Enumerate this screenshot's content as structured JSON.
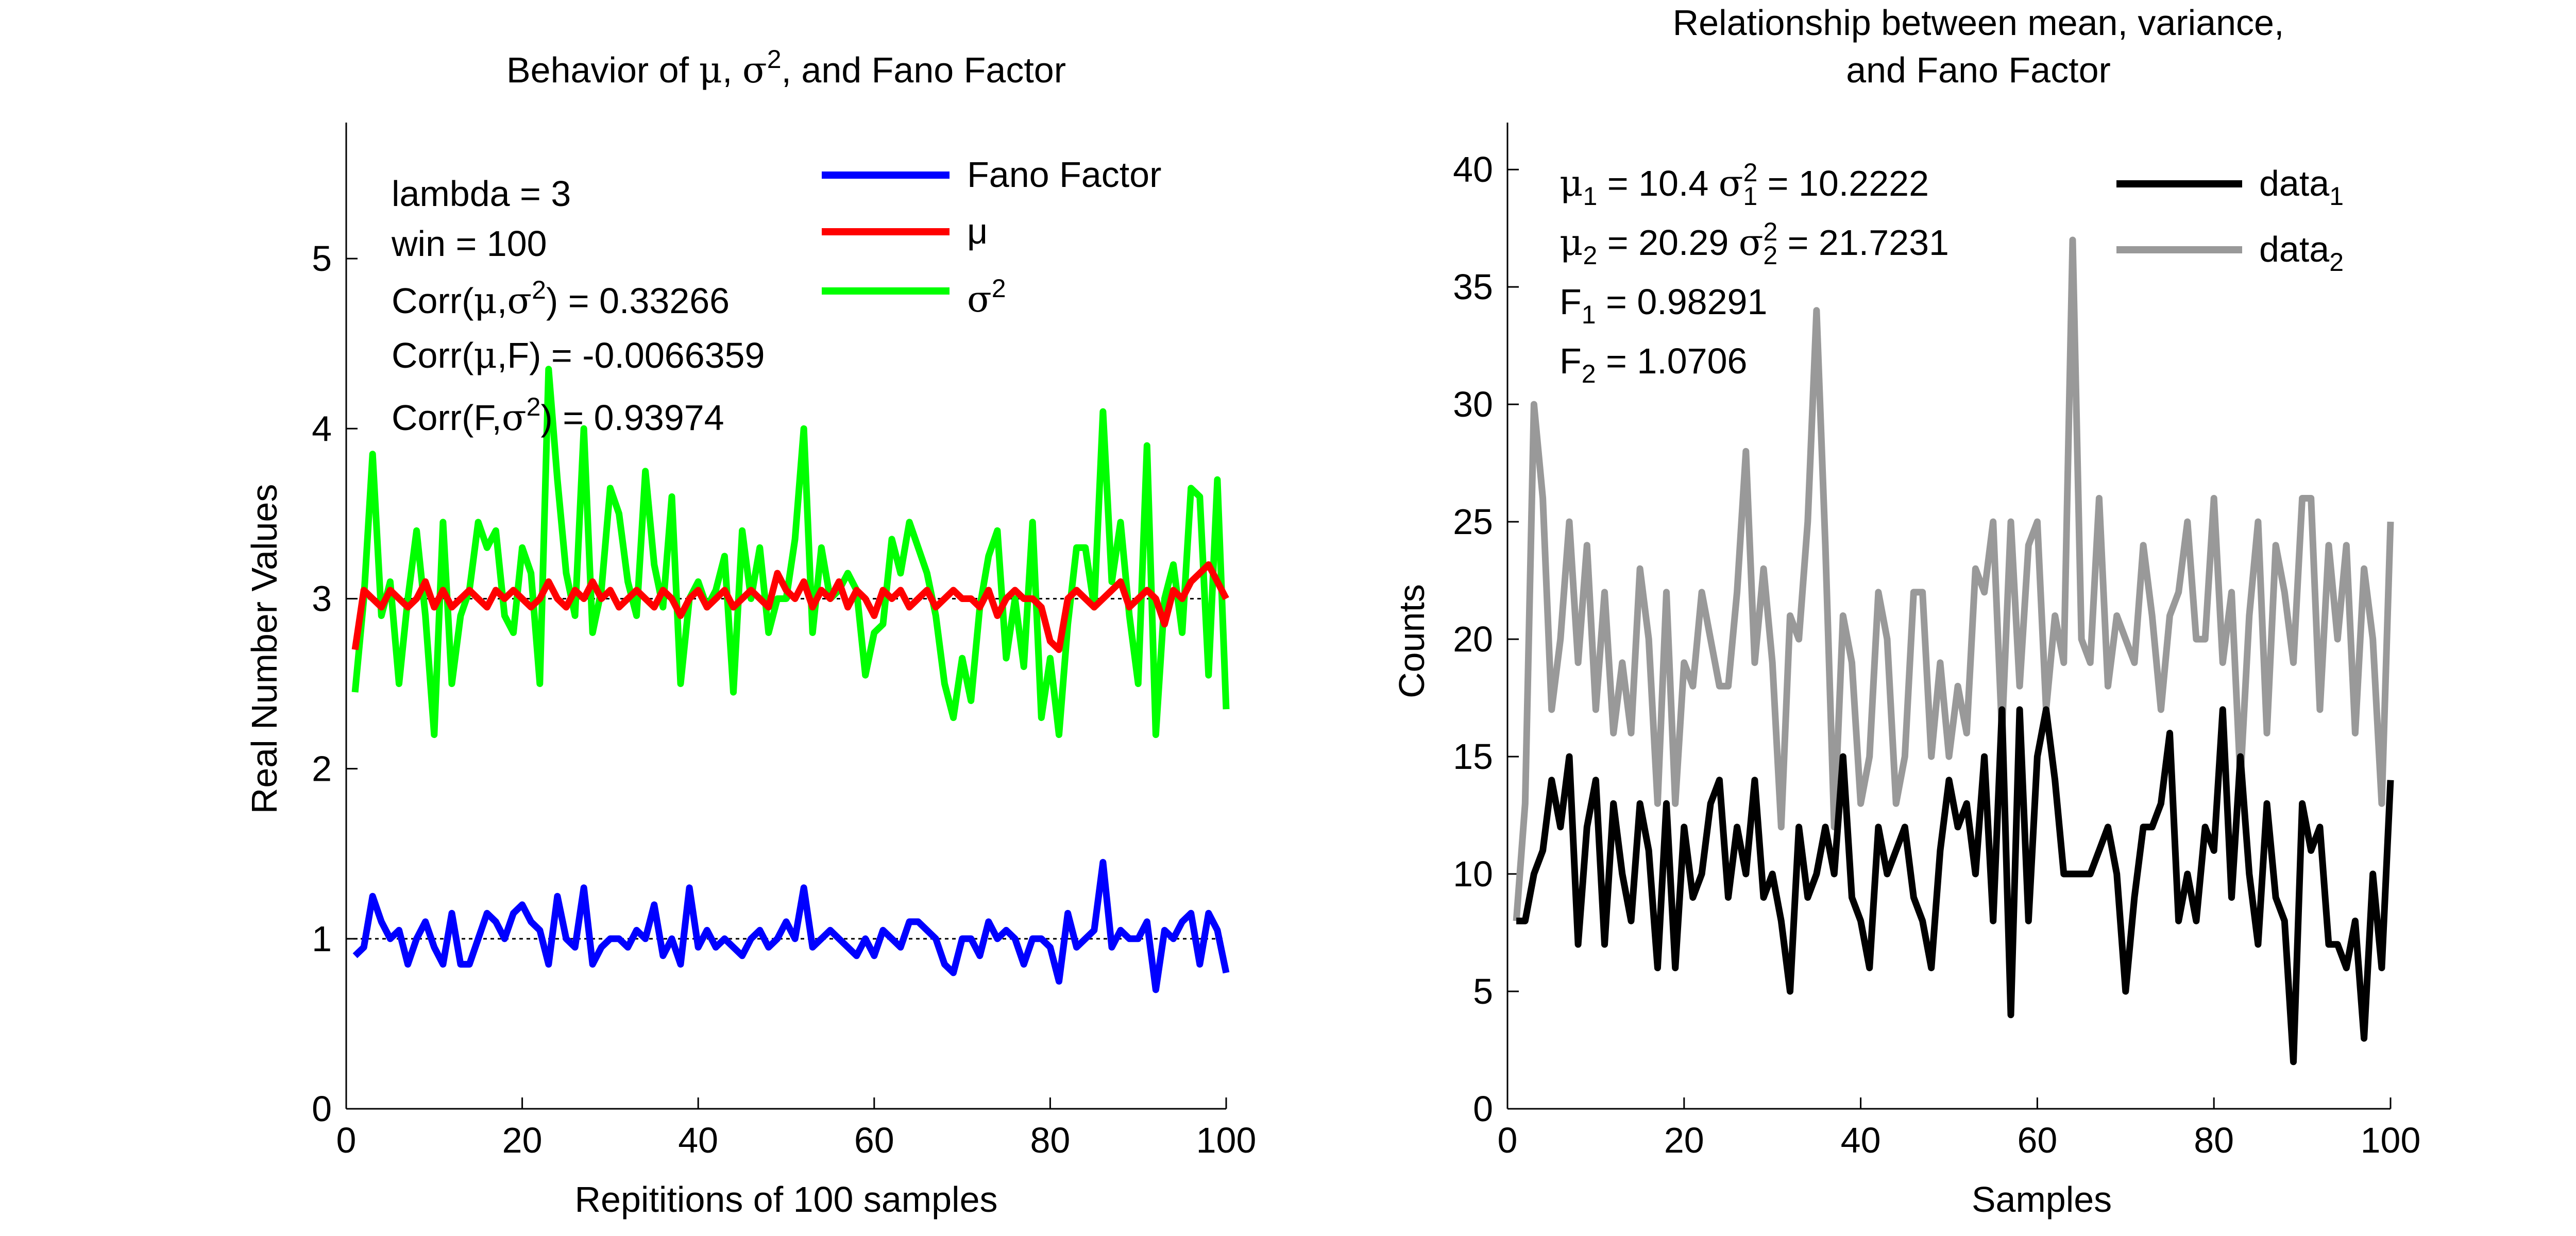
{
  "chart_data": [
    {
      "type": "line",
      "title": "Behavior of μ, σ², and Fano Factor",
      "title_parts": {
        "a": "Behavior of ",
        "mu": "μ",
        "sep": ", ",
        "sigma": "σ",
        "sq": "2",
        "rest": ", and Fano Factor"
      },
      "xlabel": "Repititions of 100 samples",
      "ylabel": "Real Number Values",
      "xlim": [
        0,
        100
      ],
      "ylim": [
        0,
        5.8
      ],
      "xticks": [
        0,
        20,
        40,
        60,
        80,
        100
      ],
      "yticks": [
        0,
        1,
        2,
        3,
        4,
        5
      ],
      "grid": false,
      "legend_position": "top-right",
      "annotations": {
        "lambda": "lambda = 3",
        "win": "win = 100",
        "corr1": {
          "a": "Corr(",
          "b": "μ",
          "c": ",",
          "d": "σ",
          "sq": "2",
          "e": ") = 0.33266"
        },
        "corr2": {
          "a": "Corr(",
          "b": "μ",
          "c": ",F) = -0.0066359"
        },
        "corr3": {
          "a": "Corr(F,",
          "d": "σ",
          "sq": "2",
          "e": ") = 0.93974"
        }
      },
      "reference_lines": [
        {
          "y": 1,
          "style": "dotted",
          "color": "#000000"
        },
        {
          "y": 3,
          "style": "dotted",
          "color": "#000000"
        }
      ],
      "x": [
        1,
        2,
        3,
        4,
        5,
        6,
        7,
        8,
        9,
        10,
        11,
        12,
        13,
        14,
        15,
        16,
        17,
        18,
        19,
        20,
        21,
        22,
        23,
        24,
        25,
        26,
        27,
        28,
        29,
        30,
        31,
        32,
        33,
        34,
        35,
        36,
        37,
        38,
        39,
        40,
        41,
        42,
        43,
        44,
        45,
        46,
        47,
        48,
        49,
        50,
        51,
        52,
        53,
        54,
        55,
        56,
        57,
        58,
        59,
        60,
        61,
        62,
        63,
        64,
        65,
        66,
        67,
        68,
        69,
        70,
        71,
        72,
        73,
        74,
        75,
        76,
        77,
        78,
        79,
        80,
        81,
        82,
        83,
        84,
        85,
        86,
        87,
        88,
        89,
        90,
        91,
        92,
        93,
        94,
        95,
        96,
        97,
        98,
        99,
        100
      ],
      "series": [
        {
          "name": "Fano Factor",
          "legend": "Fano Factor",
          "color": "#0000ff",
          "values": [
            0.9,
            0.95,
            1.25,
            1.1,
            1.0,
            1.05,
            0.85,
            1.0,
            1.1,
            0.95,
            0.85,
            1.15,
            0.85,
            0.85,
            1.0,
            1.15,
            1.1,
            1.0,
            1.15,
            1.2,
            1.1,
            1.05,
            0.85,
            1.25,
            1.0,
            0.95,
            1.3,
            0.85,
            0.95,
            1.0,
            1.0,
            0.95,
            1.05,
            1.0,
            1.2,
            0.9,
            1.0,
            0.85,
            1.3,
            0.95,
            1.05,
            0.95,
            1.0,
            0.95,
            0.9,
            1.0,
            1.05,
            0.95,
            1.0,
            1.1,
            1.0,
            1.3,
            0.95,
            1.0,
            1.05,
            1.0,
            0.95,
            0.9,
            1.0,
            0.9,
            1.05,
            1.0,
            0.95,
            1.1,
            1.1,
            1.05,
            1.0,
            0.85,
            0.8,
            1.0,
            1.0,
            0.9,
            1.1,
            1.0,
            1.05,
            1.0,
            0.85,
            1.0,
            1.0,
            0.95,
            0.75,
            1.15,
            0.95,
            1.0,
            1.05,
            1.45,
            0.95,
            1.05,
            1.0,
            1.0,
            1.1,
            0.7,
            1.05,
            1.0,
            1.1,
            1.15,
            0.85,
            1.15,
            1.05,
            0.8
          ]
        },
        {
          "name": "μ",
          "legend": "μ",
          "color": "#ff0000",
          "values": [
            2.7,
            3.05,
            3.0,
            2.95,
            3.05,
            3.0,
            2.95,
            3.0,
            3.1,
            2.95,
            3.05,
            2.95,
            3.0,
            3.05,
            3.0,
            2.95,
            3.05,
            3.0,
            3.05,
            3.0,
            2.95,
            3.0,
            3.1,
            3.0,
            2.95,
            3.05,
            3.0,
            3.1,
            3.0,
            3.05,
            2.95,
            3.0,
            3.05,
            3.0,
            2.95,
            3.05,
            3.0,
            2.9,
            3.0,
            3.05,
            2.95,
            3.0,
            3.05,
            2.95,
            3.0,
            3.05,
            3.0,
            2.95,
            3.15,
            3.05,
            3.0,
            3.1,
            2.95,
            3.05,
            3.0,
            3.1,
            2.95,
            3.05,
            3.0,
            2.9,
            3.05,
            3.0,
            3.05,
            2.95,
            3.0,
            3.05,
            2.95,
            3.0,
            3.05,
            3.0,
            3.0,
            2.95,
            3.05,
            2.9,
            3.0,
            3.05,
            3.0,
            3.0,
            2.95,
            2.75,
            2.7,
            3.0,
            3.05,
            3.0,
            2.95,
            3.0,
            3.05,
            3.1,
            2.95,
            3.0,
            3.05,
            3.0,
            2.85,
            3.05,
            3.0,
            3.1,
            3.15,
            3.2,
            3.1,
            3.0
          ]
        },
        {
          "name": "σ²",
          "legend": {
            "a": "σ",
            "sq": "2"
          },
          "color": "#00ff00",
          "values": [
            2.45,
            3.0,
            3.85,
            2.9,
            3.1,
            2.5,
            3.0,
            3.4,
            2.9,
            2.2,
            3.45,
            2.5,
            2.9,
            3.05,
            3.45,
            3.3,
            3.4,
            2.9,
            2.8,
            3.3,
            3.15,
            2.5,
            4.35,
            3.7,
            3.15,
            2.9,
            4.0,
            2.8,
            3.05,
            3.65,
            3.5,
            3.1,
            2.9,
            3.75,
            3.2,
            2.95,
            3.6,
            2.5,
            3.0,
            3.1,
            2.95,
            3.05,
            3.25,
            2.45,
            3.4,
            3.0,
            3.3,
            2.8,
            3.0,
            3.0,
            3.35,
            4.0,
            2.8,
            3.3,
            3.0,
            3.05,
            3.15,
            3.05,
            2.55,
            2.8,
            2.85,
            3.35,
            3.15,
            3.45,
            3.3,
            3.15,
            2.9,
            2.5,
            2.3,
            2.65,
            2.4,
            2.95,
            3.25,
            3.4,
            2.65,
            3.0,
            2.6,
            3.45,
            2.3,
            2.65,
            2.2,
            2.85,
            3.3,
            3.3,
            2.95,
            4.1,
            3.1,
            3.45,
            2.9,
            2.5,
            3.9,
            2.2,
            3.0,
            3.2,
            2.8,
            3.65,
            3.6,
            2.55,
            3.7,
            2.35
          ]
        }
      ]
    },
    {
      "type": "line",
      "title": [
        "Relationship between mean, variance,",
        "and Fano Factor"
      ],
      "xlabel": "Samples",
      "ylabel": "Counts",
      "xlim": [
        0,
        100
      ],
      "ylim": [
        0,
        42
      ],
      "xticks": [
        0,
        20,
        40,
        60,
        80,
        100
      ],
      "yticks": [
        0,
        5,
        10,
        15,
        20,
        25,
        30,
        35,
        40
      ],
      "grid": false,
      "legend_position": "top-right",
      "annotations": {
        "row1": {
          "mu": "μ",
          "sub1": "1",
          "a": " = 10.4  ",
          "sig": "σ",
          "sq": "2",
          "sub2": "1",
          "b": " = 10.2222"
        },
        "row2": {
          "mu": "μ",
          "sub1": "2",
          "a": " = 20.29  ",
          "sig": "σ",
          "sq": "2",
          "sub2": "2",
          "b": " = 21.7231"
        },
        "row3": {
          "f": "F",
          "sub": "1",
          "a": " = 0.98291"
        },
        "row4": {
          "f": "F",
          "sub": "2",
          "a": " = 1.0706"
        }
      },
      "x": [
        1,
        2,
        3,
        4,
        5,
        6,
        7,
        8,
        9,
        10,
        11,
        12,
        13,
        14,
        15,
        16,
        17,
        18,
        19,
        20,
        21,
        22,
        23,
        24,
        25,
        26,
        27,
        28,
        29,
        30,
        31,
        32,
        33,
        34,
        35,
        36,
        37,
        38,
        39,
        40,
        41,
        42,
        43,
        44,
        45,
        46,
        47,
        48,
        49,
        50,
        51,
        52,
        53,
        54,
        55,
        56,
        57,
        58,
        59,
        60,
        61,
        62,
        63,
        64,
        65,
        66,
        67,
        68,
        69,
        70,
        71,
        72,
        73,
        74,
        75,
        76,
        77,
        78,
        79,
        80,
        81,
        82,
        83,
        84,
        85,
        86,
        87,
        88,
        89,
        90,
        91,
        92,
        93,
        94,
        95,
        96,
        97,
        98,
        99,
        100
      ],
      "series": [
        {
          "name": "data_1",
          "legend": {
            "base": "data",
            "sub": "1"
          },
          "color": "#000000",
          "values": [
            8,
            8,
            10,
            11,
            14,
            12,
            15,
            7,
            12,
            14,
            7,
            13,
            10,
            8,
            13,
            11,
            6,
            13,
            6,
            12,
            9,
            10,
            13,
            14,
            9,
            12,
            10,
            14,
            9,
            10,
            8,
            5,
            12,
            9,
            10,
            12,
            10,
            15,
            9,
            8,
            6,
            12,
            10,
            11,
            12,
            9,
            8,
            6,
            11,
            14,
            12,
            13,
            10,
            15,
            8,
            17,
            4,
            17,
            8,
            15,
            17,
            14,
            10,
            10,
            10,
            10,
            11,
            12,
            10,
            5,
            9,
            12,
            12,
            13,
            16,
            8,
            10,
            8,
            12,
            11,
            17,
            9,
            15,
            10,
            7,
            13,
            9,
            8,
            2,
            13,
            11,
            12,
            7,
            7,
            6,
            8,
            3,
            10,
            6,
            14
          ]
        },
        {
          "name": "data_2",
          "legend": {
            "base": "data",
            "sub": "2"
          },
          "color": "#999999",
          "values": [
            8,
            13,
            30,
            26,
            17,
            20,
            25,
            19,
            24,
            17,
            22,
            16,
            19,
            16,
            23,
            20,
            13,
            22,
            13,
            19,
            18,
            22,
            20,
            18,
            18,
            22,
            28,
            19,
            23,
            19,
            12,
            21,
            20,
            25,
            34,
            24,
            12,
            21,
            19,
            13,
            15,
            22,
            20,
            13,
            15,
            22,
            22,
            15,
            19,
            15,
            18,
            16,
            23,
            22,
            25,
            16,
            25,
            18,
            24,
            25,
            17,
            21,
            19,
            37,
            20,
            19,
            26,
            18,
            21,
            20,
            19,
            24,
            21,
            17,
            21,
            22,
            25,
            20,
            20,
            26,
            19,
            22,
            14,
            21,
            25,
            16,
            24,
            22,
            19,
            26,
            26,
            17,
            24,
            20,
            24,
            16,
            23,
            20,
            13,
            25
          ]
        }
      ]
    }
  ]
}
